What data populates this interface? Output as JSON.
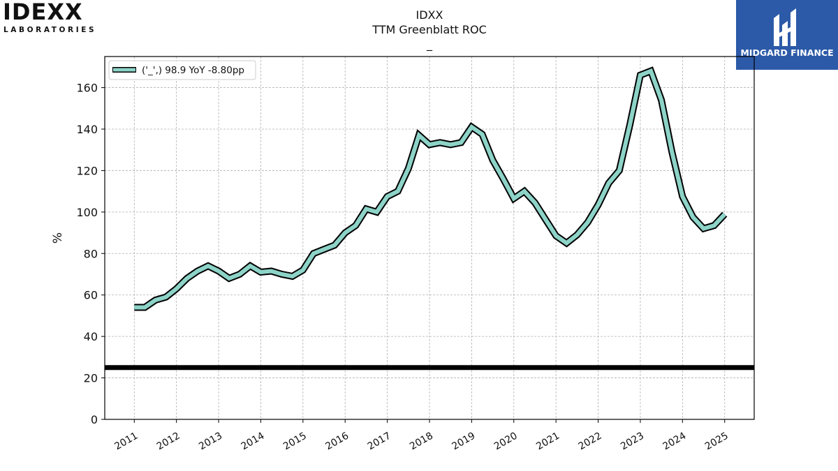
{
  "logos": {
    "left_main": "IDEXX",
    "left_sub": "LABORATORIES",
    "right_name": "MIDGARD FINANCE"
  },
  "header": {
    "ticker": "IDXX",
    "metric": "TTM Greenblatt ROC",
    "subtitle": "_"
  },
  "chart_data": {
    "type": "line",
    "title": "IDXX TTM Greenblatt ROC",
    "ylabel": "%",
    "xlabel": "",
    "ylim": [
      0,
      175
    ],
    "yticks": [
      0,
      20,
      40,
      60,
      80,
      100,
      120,
      140,
      160
    ],
    "xticks": [
      "2011",
      "2012",
      "2013",
      "2014",
      "2015",
      "2016",
      "2017",
      "2018",
      "2019",
      "2020",
      "2021",
      "2022",
      "2023",
      "2024",
      "2025"
    ],
    "xlim": [
      2010.3,
      2025.7
    ],
    "grid": true,
    "legend": {
      "placement": "top-left",
      "entries": [
        "('_',) 98.9 YoY -8.80pp"
      ]
    },
    "reference_line": {
      "y": 25,
      "color": "#000000"
    },
    "series": [
      {
        "name": "('_',) 98.9 YoY -8.80pp",
        "color": "#8dd3c7",
        "x": [
          "2010-12",
          "2011-03",
          "2011-06",
          "2011-09",
          "2011-12",
          "2012-03",
          "2012-06",
          "2012-09",
          "2012-12",
          "2013-03",
          "2013-06",
          "2013-09",
          "2013-12",
          "2014-03",
          "2014-06",
          "2014-09",
          "2014-12",
          "2015-03",
          "2015-06",
          "2015-09",
          "2015-12",
          "2016-03",
          "2016-06",
          "2016-09",
          "2016-12",
          "2017-03",
          "2017-06",
          "2017-09",
          "2017-12",
          "2018-03",
          "2018-06",
          "2018-09",
          "2018-12",
          "2019-03",
          "2019-06",
          "2019-09",
          "2019-12",
          "2020-03",
          "2020-06",
          "2020-09",
          "2020-12",
          "2021-03",
          "2021-06",
          "2021-09",
          "2021-12",
          "2022-03",
          "2022-06",
          "2022-09",
          "2022-12",
          "2023-03",
          "2023-06",
          "2023-09",
          "2023-12",
          "2024-03",
          "2024-06",
          "2024-09",
          "2024-12"
        ],
        "values": [
          54,
          54,
          57.5,
          59,
          63,
          68,
          71.5,
          74,
          71.5,
          68,
          70,
          74,
          71,
          71.5,
          70,
          69,
          72,
          80,
          82,
          84,
          90,
          93.5,
          101.5,
          100,
          107.5,
          110,
          121,
          137,
          132.5,
          133.5,
          132.5,
          133.5,
          141,
          137.5,
          125,
          116,
          106.5,
          110,
          104.5,
          96.5,
          88.5,
          85,
          89,
          95,
          103.5,
          114,
          120,
          142,
          166,
          168,
          154,
          129,
          107.5,
          97.5,
          92,
          93.5,
          98.9
        ]
      }
    ]
  }
}
